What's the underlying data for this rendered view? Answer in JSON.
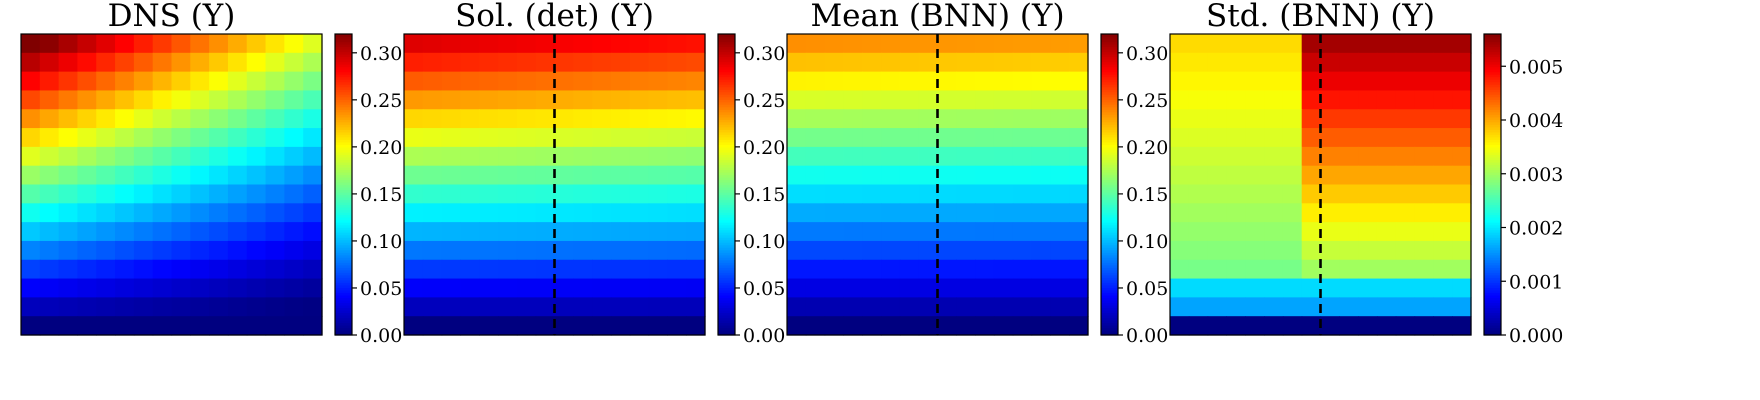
{
  "chart_data": [
    {
      "type": "heatmap",
      "title": "DNS (Y)",
      "rows": 16,
      "cols": 16,
      "colormap": "jet",
      "vmin": 0.0,
      "vmax": 0.32,
      "colorbar_ticks": [
        "0.00",
        "0.05",
        "0.10",
        "0.15",
        "0.20",
        "0.25",
        "0.30"
      ],
      "colorbar_values": [
        0.0,
        0.05,
        0.1,
        0.15,
        0.2,
        0.25,
        0.3
      ],
      "divider": false,
      "field": {
        "model": "dns",
        "top": 0.3,
        "bottom": 0.0,
        "right_drop": 0.11,
        "top_extra": 0.025
      }
    },
    {
      "type": "heatmap",
      "title": "Sol. (det) (Y)",
      "rows": 16,
      "cols": 16,
      "colormap": "jet",
      "vmin": 0.0,
      "vmax": 0.32,
      "colorbar_ticks": [
        "0.00",
        "0.05",
        "0.10",
        "0.15",
        "0.20",
        "0.25",
        "0.30"
      ],
      "colorbar_values": [
        0.0,
        0.05,
        0.1,
        0.15,
        0.2,
        0.25,
        0.3
      ],
      "divider": true,
      "divider_col": 7.5,
      "field": {
        "model": "layered",
        "top": 0.29,
        "bottom": 0.0,
        "right_drop": 0.015
      }
    },
    {
      "type": "heatmap",
      "title": "Mean (BNN) (Y)",
      "rows": 16,
      "cols": 16,
      "colormap": "jet",
      "vmin": 0.0,
      "vmax": 0.32,
      "colorbar_ticks": [
        "0.00",
        "0.05",
        "0.10",
        "0.15",
        "0.20",
        "0.25",
        "0.30"
      ],
      "colorbar_values": [
        0.0,
        0.05,
        0.1,
        0.15,
        0.2,
        0.25,
        0.3
      ],
      "divider": true,
      "divider_col": 7.5,
      "field": {
        "model": "layered",
        "top": 0.235,
        "bottom": 0.0,
        "right_drop": 0.004
      }
    },
    {
      "type": "heatmap",
      "title": "Std. (BNN) (Y)",
      "rows": 16,
      "cols": 16,
      "colormap": "jet",
      "vmin": 0.0,
      "vmax": 0.0056,
      "colorbar_ticks": [
        "0.000",
        "0.001",
        "0.002",
        "0.003",
        "0.004",
        "0.005"
      ],
      "colorbar_values": [
        0.0,
        0.001,
        0.002,
        0.003,
        0.004,
        0.005
      ],
      "divider": true,
      "divider_col": 7.5,
      "field": {
        "model": "std",
        "left_top": 0.0037,
        "right_top": 0.0054,
        "mid": 0.0028,
        "bottom": 0.0
      }
    }
  ]
}
